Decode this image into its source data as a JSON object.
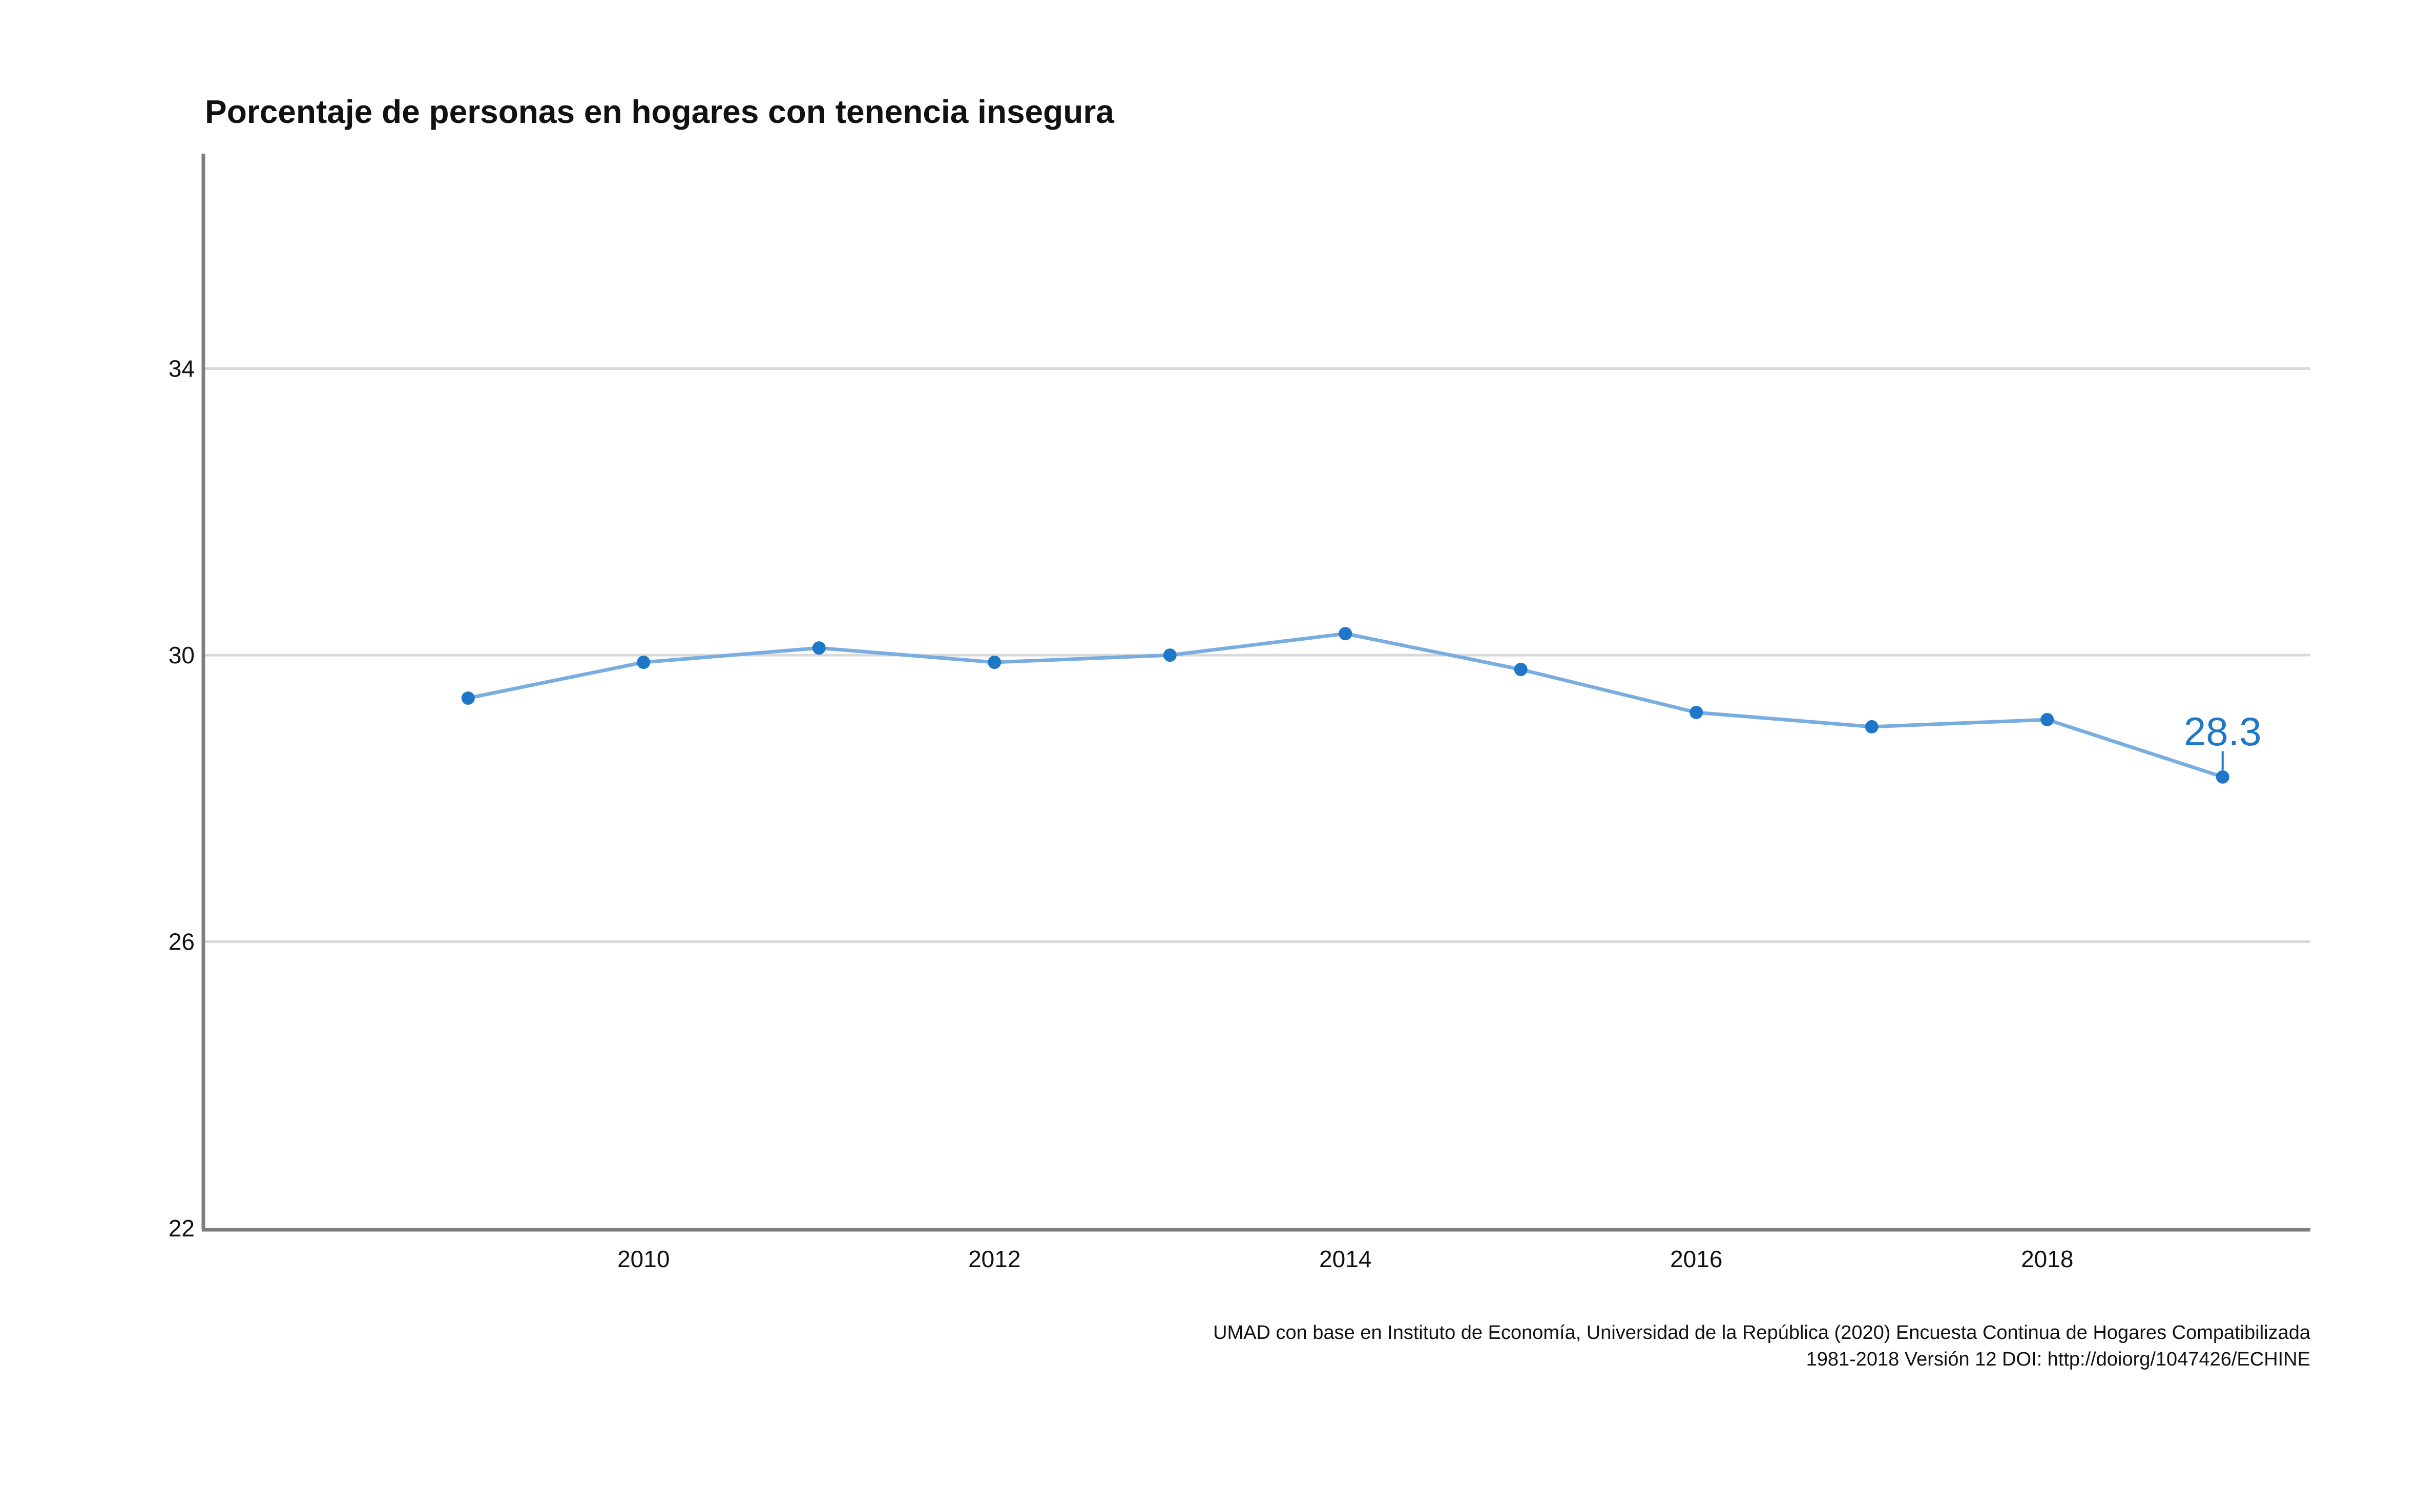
{
  "chart_data": {
    "type": "line",
    "title": "Porcentaje de personas en hogares con tenencia insegura",
    "xlabel": "",
    "ylabel": "",
    "x": [
      2009,
      2010,
      2011,
      2012,
      2013,
      2014,
      2015,
      2016,
      2017,
      2018,
      2019
    ],
    "series": [
      {
        "values": [
          29.4,
          29.9,
          30.1,
          29.9,
          30.0,
          30.3,
          29.8,
          29.2,
          29.0,
          29.1,
          28.3
        ]
      }
    ],
    "xlim": [
      2007.5,
      2019.5
    ],
    "ylim": [
      22,
      37
    ],
    "x_ticks": [
      "2010",
      "2012",
      "2014",
      "2016",
      "2018"
    ],
    "y_ticks": [
      "22",
      "26",
      "30",
      "34"
    ],
    "end_label": "28.3",
    "grid": "horizontal",
    "colors": {
      "line": "#79ade0",
      "point": "#1f77c8",
      "label": "#1f77c8",
      "grid": "#d9d9d9",
      "axis": "#7f7f7f"
    },
    "caption": [
      "UMAD con base en Instituto de Economía, Universidad de la República (2020) Encuesta Continua de Hogares Compatibilizada",
      "1981-2018 Versión 12 DOI: http://doiorg/1047426/ECHINE"
    ]
  }
}
